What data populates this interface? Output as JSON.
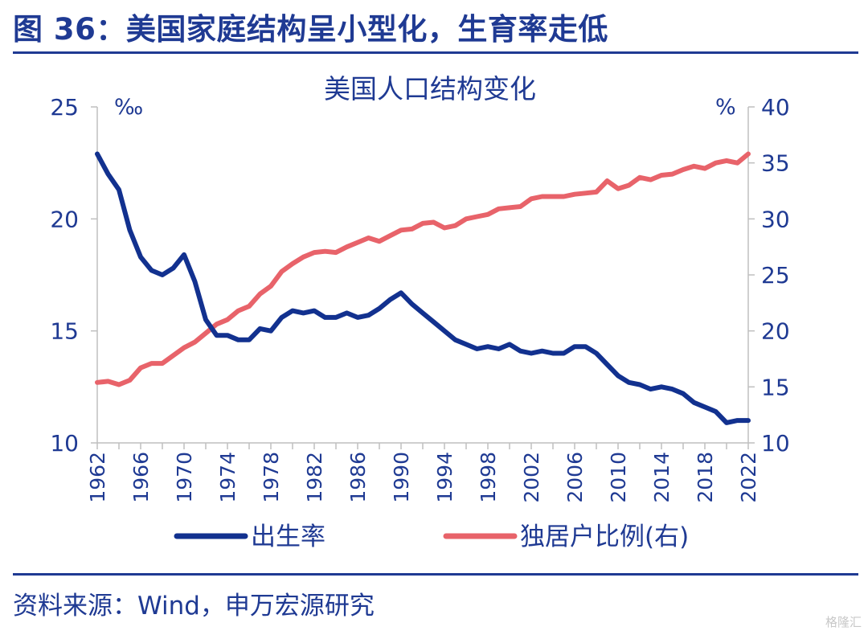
{
  "figure": {
    "title": "图 36：美国家庭结构呈小型化，生育率走低",
    "source": "资料来源：Wind，申万宏源研究",
    "watermark": "格隆汇"
  },
  "colors": {
    "brand": "#1f3a93",
    "birth_rate": "#12318f",
    "living_alone": "#e8636a",
    "axis": "#bfbfbf"
  },
  "chart_data": {
    "type": "line",
    "title": "美国人口结构变化",
    "left_unit": "‰",
    "right_unit": "%",
    "left_axis": {
      "min": 10,
      "max": 25,
      "ticks": [
        10,
        15,
        20,
        25
      ],
      "tick_labels": [
        "10",
        "15",
        "20",
        "25"
      ]
    },
    "right_axis": {
      "min": 10,
      "max": 40,
      "ticks": [
        10,
        15,
        20,
        25,
        30,
        35,
        40
      ],
      "tick_labels": [
        "10",
        "15",
        "20",
        "25",
        "30",
        "35",
        "40"
      ]
    },
    "x_range": [
      1962,
      2022
    ],
    "x_tick_labels": [
      "1962",
      "1966",
      "1970",
      "1974",
      "1978",
      "1982",
      "1986",
      "1990",
      "1994",
      "1998",
      "2002",
      "2006",
      "2010",
      "2014",
      "2018",
      "2022"
    ],
    "legend": {
      "position": "bottom"
    },
    "series": [
      {
        "name": "出生率",
        "axis": "left",
        "x": [
          1962,
          1963,
          1964,
          1965,
          1966,
          1967,
          1968,
          1969,
          1970,
          1971,
          1972,
          1973,
          1974,
          1975,
          1976,
          1977,
          1978,
          1979,
          1980,
          1981,
          1982,
          1983,
          1984,
          1985,
          1986,
          1987,
          1988,
          1989,
          1990,
          1991,
          1992,
          1993,
          1994,
          1995,
          1996,
          1997,
          1998,
          1999,
          2000,
          2001,
          2002,
          2003,
          2004,
          2005,
          2006,
          2007,
          2008,
          2009,
          2010,
          2011,
          2012,
          2013,
          2014,
          2015,
          2016,
          2017,
          2018,
          2019,
          2020,
          2021,
          2022
        ],
        "values": [
          22.9,
          22.0,
          21.3,
          19.5,
          18.3,
          17.7,
          17.5,
          17.8,
          18.4,
          17.2,
          15.5,
          14.8,
          14.8,
          14.6,
          14.6,
          15.1,
          15.0,
          15.6,
          15.9,
          15.8,
          15.9,
          15.6,
          15.6,
          15.8,
          15.6,
          15.7,
          16.0,
          16.4,
          16.7,
          16.2,
          15.8,
          15.4,
          15.0,
          14.6,
          14.4,
          14.2,
          14.3,
          14.2,
          14.4,
          14.1,
          14.0,
          14.1,
          14.0,
          14.0,
          14.3,
          14.3,
          14.0,
          13.5,
          13.0,
          12.7,
          12.6,
          12.4,
          12.5,
          12.4,
          12.2,
          11.8,
          11.6,
          11.4,
          10.9,
          11.0,
          11.0
        ]
      },
      {
        "name": "独居户比例(右)",
        "axis": "right",
        "x": [
          1962,
          1963,
          1964,
          1965,
          1966,
          1967,
          1968,
          1969,
          1970,
          1971,
          1972,
          1973,
          1974,
          1975,
          1976,
          1977,
          1978,
          1979,
          1980,
          1981,
          1982,
          1983,
          1984,
          1985,
          1986,
          1987,
          1988,
          1989,
          1990,
          1991,
          1992,
          1993,
          1994,
          1995,
          1996,
          1997,
          1998,
          1999,
          2000,
          2001,
          2002,
          2003,
          2004,
          2005,
          2006,
          2007,
          2008,
          2009,
          2010,
          2011,
          2012,
          2013,
          2014,
          2015,
          2016,
          2017,
          2018,
          2019,
          2020,
          2021,
          2022
        ],
        "values": [
          15.4,
          15.5,
          15.2,
          15.6,
          16.7,
          17.1,
          17.1,
          17.8,
          18.5,
          19.0,
          19.8,
          20.6,
          21.0,
          21.8,
          22.2,
          23.3,
          24.0,
          25.3,
          26.0,
          26.6,
          27.0,
          27.1,
          27.0,
          27.5,
          27.9,
          28.3,
          28.0,
          28.5,
          29.0,
          29.1,
          29.6,
          29.7,
          29.2,
          29.4,
          30.0,
          30.2,
          30.4,
          30.9,
          31.0,
          31.1,
          31.8,
          32.0,
          32.0,
          32.0,
          32.2,
          32.3,
          32.4,
          33.4,
          32.7,
          33.0,
          33.7,
          33.5,
          33.9,
          34.0,
          34.4,
          34.7,
          34.5,
          35.0,
          35.2,
          35.0,
          35.8
        ]
      }
    ]
  }
}
